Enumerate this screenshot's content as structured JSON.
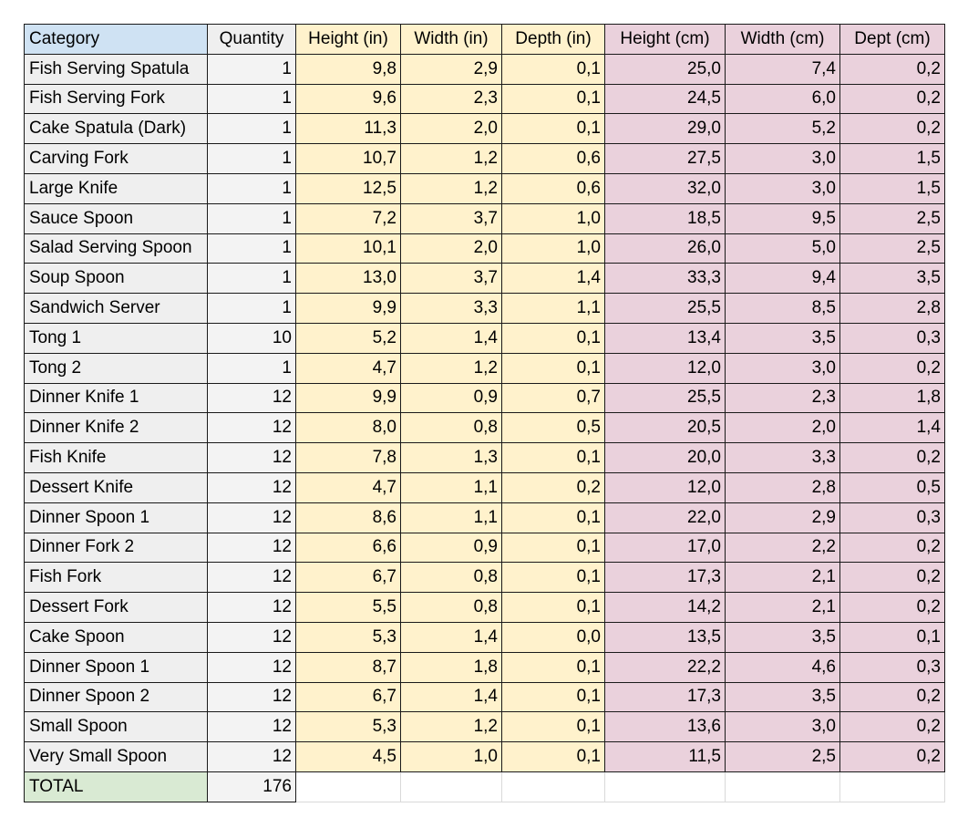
{
  "colors": {
    "header_category_bg": "#cfe2f3",
    "header_quantity_bg": "#efefef",
    "category_bg": "#efefef",
    "quantity_bg": "#f3f3f3",
    "inches_bg": "#fff2cc",
    "cm_bg": "#ead1dc",
    "total_bg": "#d9ead3",
    "border": "#1a1a1a"
  },
  "headers": [
    "Category",
    "Quantity",
    "Height (in)",
    "Width (in)",
    "Depth (in)",
    "Height (cm)",
    "Width (cm)",
    "Dept (cm)"
  ],
  "rows": [
    [
      "Fish Serving Spatula",
      "1",
      "9,8",
      "2,9",
      "0,1",
      "25,0",
      "7,4",
      "0,2"
    ],
    [
      "Fish Serving Fork",
      "1",
      "9,6",
      "2,3",
      "0,1",
      "24,5",
      "6,0",
      "0,2"
    ],
    [
      "Cake Spatula (Dark)",
      "1",
      "11,3",
      "2,0",
      "0,1",
      "29,0",
      "5,2",
      "0,2"
    ],
    [
      "Carving Fork",
      "1",
      "10,7",
      "1,2",
      "0,6",
      "27,5",
      "3,0",
      "1,5"
    ],
    [
      "Large Knife",
      "1",
      "12,5",
      "1,2",
      "0,6",
      "32,0",
      "3,0",
      "1,5"
    ],
    [
      "Sauce Spoon",
      "1",
      "7,2",
      "3,7",
      "1,0",
      "18,5",
      "9,5",
      "2,5"
    ],
    [
      "Salad Serving Spoon",
      "1",
      "10,1",
      "2,0",
      "1,0",
      "26,0",
      "5,0",
      "2,5"
    ],
    [
      "Soup Spoon",
      "1",
      "13,0",
      "3,7",
      "1,4",
      "33,3",
      "9,4",
      "3,5"
    ],
    [
      "Sandwich Server",
      "1",
      "9,9",
      "3,3",
      "1,1",
      "25,5",
      "8,5",
      "2,8"
    ],
    [
      "Tong 1",
      "10",
      "5,2",
      "1,4",
      "0,1",
      "13,4",
      "3,5",
      "0,3"
    ],
    [
      "Tong 2",
      "1",
      "4,7",
      "1,2",
      "0,1",
      "12,0",
      "3,0",
      "0,2"
    ],
    [
      "Dinner Knife 1",
      "12",
      "9,9",
      "0,9",
      "0,7",
      "25,5",
      "2,3",
      "1,8"
    ],
    [
      "Dinner Knife 2",
      "12",
      "8,0",
      "0,8",
      "0,5",
      "20,5",
      "2,0",
      "1,4"
    ],
    [
      "Fish Knife",
      "12",
      "7,8",
      "1,3",
      "0,1",
      "20,0",
      "3,3",
      "0,2"
    ],
    [
      "Dessert Knife",
      "12",
      "4,7",
      "1,1",
      "0,2",
      "12,0",
      "2,8",
      "0,5"
    ],
    [
      "Dinner Spoon 1",
      "12",
      "8,6",
      "1,1",
      "0,1",
      "22,0",
      "2,9",
      "0,3"
    ],
    [
      "Dinner Fork 2",
      "12",
      "6,6",
      "0,9",
      "0,1",
      "17,0",
      "2,2",
      "0,2"
    ],
    [
      "Fish Fork",
      "12",
      "6,7",
      "0,8",
      "0,1",
      "17,3",
      "2,1",
      "0,2"
    ],
    [
      "Dessert Fork",
      "12",
      "5,5",
      "0,8",
      "0,1",
      "14,2",
      "2,1",
      "0,2"
    ],
    [
      "Cake Spoon",
      "12",
      "5,3",
      "1,4",
      "0,0",
      "13,5",
      "3,5",
      "0,1"
    ],
    [
      "Dinner Spoon 1",
      "12",
      "8,7",
      "1,8",
      "0,1",
      "22,2",
      "4,6",
      "0,3"
    ],
    [
      "Dinner Spoon 2",
      "12",
      "6,7",
      "1,4",
      "0,1",
      "17,3",
      "3,5",
      "0,2"
    ],
    [
      "Small Spoon",
      "12",
      "5,3",
      "1,2",
      "0,1",
      "13,6",
      "3,0",
      "0,2"
    ],
    [
      "Very Small Spoon",
      "12",
      "4,5",
      "1,0",
      "0,1",
      "11,5",
      "2,5",
      "0,2"
    ]
  ],
  "total": {
    "label": "TOTAL",
    "quantity": "176"
  }
}
